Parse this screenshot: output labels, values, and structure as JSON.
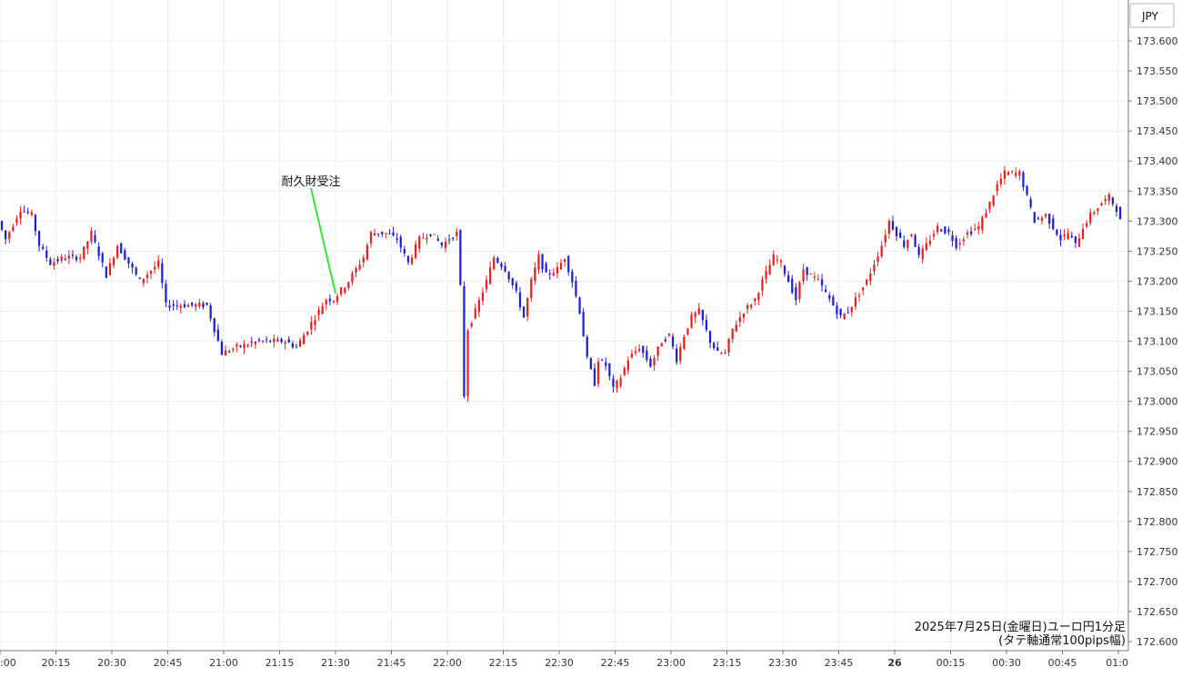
{
  "chart_data": {
    "type": "candlestick",
    "currency_label": "JPY",
    "caption_lines": [
      "2025年7月25日(金曜日)ユーロ円1分足",
      "(タテ軸通常100pips幅)"
    ],
    "y_ticks": [
      "173.600",
      "173.550",
      "173.500",
      "173.450",
      "173.400",
      "173.350",
      "173.300",
      "173.250",
      "173.200",
      "173.150",
      "173.100",
      "173.050",
      "173.000",
      "172.950",
      "172.900",
      "172.850",
      "172.800",
      "172.750",
      "172.700",
      "172.650",
      "172.600"
    ],
    "ylim": [
      172.6,
      173.6
    ],
    "x_ticks": [
      {
        "label": ":00",
        "minute": 0
      },
      {
        "label": "20:15",
        "minute": 15
      },
      {
        "label": "20:30",
        "minute": 30
      },
      {
        "label": "20:45",
        "minute": 45
      },
      {
        "label": "21:00",
        "minute": 60
      },
      {
        "label": "21:15",
        "minute": 75
      },
      {
        "label": "21:30",
        "minute": 90
      },
      {
        "label": "21:45",
        "minute": 105
      },
      {
        "label": "22:00",
        "minute": 120
      },
      {
        "label": "22:15",
        "minute": 135
      },
      {
        "label": "22:30",
        "minute": 150
      },
      {
        "label": "22:45",
        "minute": 165
      },
      {
        "label": "23:00",
        "minute": 180
      },
      {
        "label": "23:15",
        "minute": 195
      },
      {
        "label": "23:30",
        "minute": 210
      },
      {
        "label": "23:45",
        "minute": 225
      },
      {
        "label": "26",
        "minute": 240
      },
      {
        "label": "00:15",
        "minute": 255
      },
      {
        "label": "00:30",
        "minute": 270
      },
      {
        "label": "00:45",
        "minute": 285
      },
      {
        "label": "01:0",
        "minute": 300
      }
    ],
    "x_range_minutes": [
      0,
      301
    ],
    "up_color": "#e8211f",
    "down_color": "#1f1fd6",
    "grid": true,
    "annotation": {
      "text": "耐久財受注",
      "minute": 90,
      "price": 173.18,
      "line_color": "#33e833"
    },
    "price_path": [
      {
        "minute": 0,
        "price": 173.3
      },
      {
        "minute": 2,
        "price": 173.27
      },
      {
        "minute": 6,
        "price": 173.32
      },
      {
        "minute": 9,
        "price": 173.31
      },
      {
        "minute": 11,
        "price": 173.26
      },
      {
        "minute": 14,
        "price": 173.23
      },
      {
        "minute": 18,
        "price": 173.24
      },
      {
        "minute": 22,
        "price": 173.24
      },
      {
        "minute": 25,
        "price": 173.28
      },
      {
        "minute": 29,
        "price": 173.21
      },
      {
        "minute": 32,
        "price": 173.26
      },
      {
        "minute": 36,
        "price": 173.22
      },
      {
        "minute": 38,
        "price": 173.2
      },
      {
        "minute": 43,
        "price": 173.23
      },
      {
        "minute": 45,
        "price": 173.16
      },
      {
        "minute": 50,
        "price": 173.16
      },
      {
        "minute": 56,
        "price": 173.16
      },
      {
        "minute": 58,
        "price": 173.12
      },
      {
        "minute": 60,
        "price": 173.08
      },
      {
        "minute": 64,
        "price": 173.09
      },
      {
        "minute": 70,
        "price": 173.1
      },
      {
        "minute": 77,
        "price": 173.1
      },
      {
        "minute": 80,
        "price": 173.09
      },
      {
        "minute": 84,
        "price": 173.13
      },
      {
        "minute": 88,
        "price": 173.17
      },
      {
        "minute": 90,
        "price": 173.17
      },
      {
        "minute": 94,
        "price": 173.2
      },
      {
        "minute": 98,
        "price": 173.24
      },
      {
        "minute": 100,
        "price": 173.28
      },
      {
        "minute": 104,
        "price": 173.28
      },
      {
        "minute": 107,
        "price": 173.27
      },
      {
        "minute": 110,
        "price": 173.23
      },
      {
        "minute": 113,
        "price": 173.27
      },
      {
        "minute": 116,
        "price": 173.28
      },
      {
        "minute": 119,
        "price": 173.26
      },
      {
        "minute": 123,
        "price": 173.28
      },
      {
        "minute": 124,
        "price": 173.19
      },
      {
        "minute": 125,
        "price": 173.01
      },
      {
        "minute": 126,
        "price": 173.12
      },
      {
        "minute": 128,
        "price": 173.15
      },
      {
        "minute": 131,
        "price": 173.2
      },
      {
        "minute": 133,
        "price": 173.24
      },
      {
        "minute": 136,
        "price": 173.22
      },
      {
        "minute": 139,
        "price": 173.18
      },
      {
        "minute": 141,
        "price": 173.14
      },
      {
        "minute": 143,
        "price": 173.2
      },
      {
        "minute": 145,
        "price": 173.24
      },
      {
        "minute": 147,
        "price": 173.21
      },
      {
        "minute": 150,
        "price": 173.22
      },
      {
        "minute": 152,
        "price": 173.24
      },
      {
        "minute": 154,
        "price": 173.2
      },
      {
        "minute": 156,
        "price": 173.15
      },
      {
        "minute": 158,
        "price": 173.07
      },
      {
        "minute": 160,
        "price": 173.03
      },
      {
        "minute": 161,
        "price": 173.07
      },
      {
        "minute": 163,
        "price": 173.06
      },
      {
        "minute": 165,
        "price": 173.02
      },
      {
        "minute": 167,
        "price": 173.04
      },
      {
        "minute": 169,
        "price": 173.07
      },
      {
        "minute": 172,
        "price": 173.09
      },
      {
        "minute": 175,
        "price": 173.06
      },
      {
        "minute": 178,
        "price": 173.1
      },
      {
        "minute": 180,
        "price": 173.11
      },
      {
        "minute": 182,
        "price": 173.07
      },
      {
        "minute": 184,
        "price": 173.11
      },
      {
        "minute": 186,
        "price": 173.14
      },
      {
        "minute": 188,
        "price": 173.15
      },
      {
        "minute": 191,
        "price": 173.1
      },
      {
        "minute": 193,
        "price": 173.08
      },
      {
        "minute": 195,
        "price": 173.08
      },
      {
        "minute": 197,
        "price": 173.12
      },
      {
        "minute": 200,
        "price": 173.15
      },
      {
        "minute": 203,
        "price": 173.17
      },
      {
        "minute": 205,
        "price": 173.2
      },
      {
        "minute": 208,
        "price": 173.24
      },
      {
        "minute": 210,
        "price": 173.23
      },
      {
        "minute": 212,
        "price": 173.2
      },
      {
        "minute": 214,
        "price": 173.17
      },
      {
        "minute": 216,
        "price": 173.22
      },
      {
        "minute": 218,
        "price": 173.21
      },
      {
        "minute": 220,
        "price": 173.2
      },
      {
        "minute": 222,
        "price": 173.18
      },
      {
        "minute": 224,
        "price": 173.16
      },
      {
        "minute": 226,
        "price": 173.14
      },
      {
        "minute": 228,
        "price": 173.15
      },
      {
        "minute": 230,
        "price": 173.17
      },
      {
        "minute": 233,
        "price": 173.2
      },
      {
        "minute": 235,
        "price": 173.23
      },
      {
        "minute": 237,
        "price": 173.26
      },
      {
        "minute": 239,
        "price": 173.3
      },
      {
        "minute": 241,
        "price": 173.28
      },
      {
        "minute": 243,
        "price": 173.26
      },
      {
        "minute": 245,
        "price": 173.28
      },
      {
        "minute": 247,
        "price": 173.24
      },
      {
        "minute": 249,
        "price": 173.26
      },
      {
        "minute": 252,
        "price": 173.29
      },
      {
        "minute": 255,
        "price": 173.28
      },
      {
        "minute": 257,
        "price": 173.26
      },
      {
        "minute": 260,
        "price": 173.28
      },
      {
        "minute": 263,
        "price": 173.29
      },
      {
        "minute": 266,
        "price": 173.33
      },
      {
        "minute": 268,
        "price": 173.36
      },
      {
        "minute": 270,
        "price": 173.38
      },
      {
        "minute": 274,
        "price": 173.38
      },
      {
        "minute": 276,
        "price": 173.34
      },
      {
        "minute": 278,
        "price": 173.3
      },
      {
        "minute": 281,
        "price": 173.31
      },
      {
        "minute": 283,
        "price": 173.29
      },
      {
        "minute": 285,
        "price": 173.27
      },
      {
        "minute": 287,
        "price": 173.28
      },
      {
        "minute": 289,
        "price": 173.26
      },
      {
        "minute": 291,
        "price": 173.29
      },
      {
        "minute": 293,
        "price": 173.31
      },
      {
        "minute": 296,
        "price": 173.33
      },
      {
        "minute": 298,
        "price": 173.34
      },
      {
        "minute": 300,
        "price": 173.32
      },
      {
        "minute": 301,
        "price": 173.3
      }
    ]
  }
}
